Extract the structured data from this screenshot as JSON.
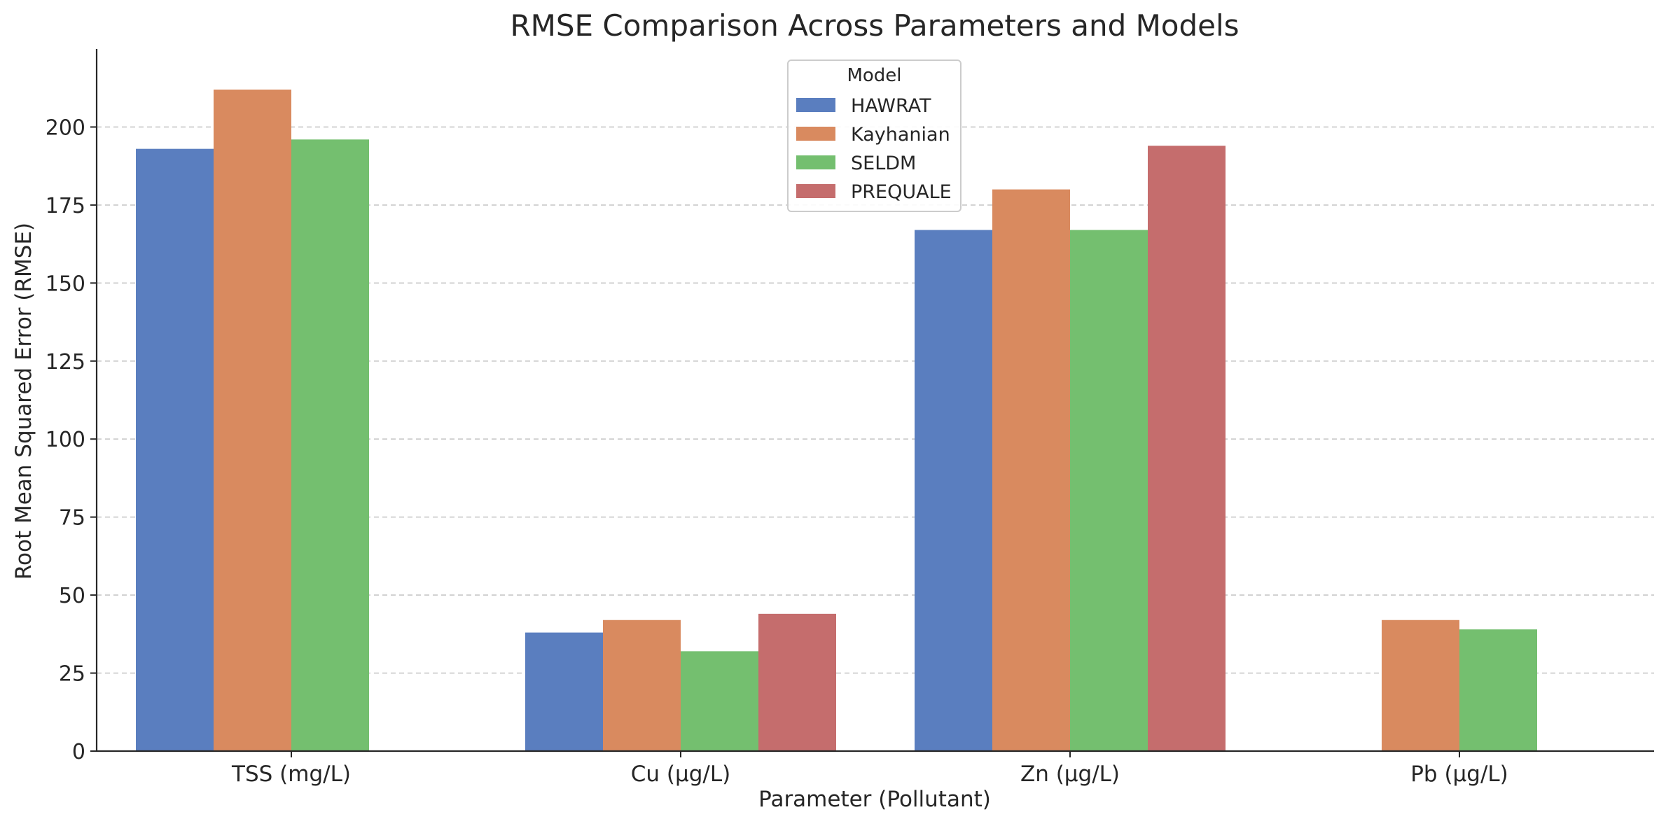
{
  "chart_data": {
    "type": "bar",
    "title": "RMSE Comparison Across Parameters and Models",
    "xlabel": "Parameter (Pollutant)",
    "ylabel": "Root Mean Squared Error (RMSE)",
    "categories": [
      "TSS (mg/L)",
      "Cu (µg/L)",
      "Zn (µg/L)",
      "Pb (µg/L)"
    ],
    "ylim": [
      0,
      225
    ],
    "yticks": [
      0,
      25,
      50,
      75,
      100,
      125,
      150,
      175,
      200
    ],
    "grid": "y-dashed",
    "legend": {
      "title": "Model",
      "placement": "top-center"
    },
    "series": [
      {
        "name": "HAWRAT",
        "color": "#5a7ebf",
        "values": [
          193,
          38,
          167,
          null
        ]
      },
      {
        "name": "Kayhanian",
        "color": "#d98a5f",
        "values": [
          212,
          42,
          180,
          42
        ]
      },
      {
        "name": "SELDM",
        "color": "#74bf6f",
        "values": [
          196,
          32,
          167,
          39
        ]
      },
      {
        "name": "PREQUALE",
        "color": "#c56d6d",
        "values": [
          null,
          44,
          194,
          null
        ]
      }
    ]
  }
}
